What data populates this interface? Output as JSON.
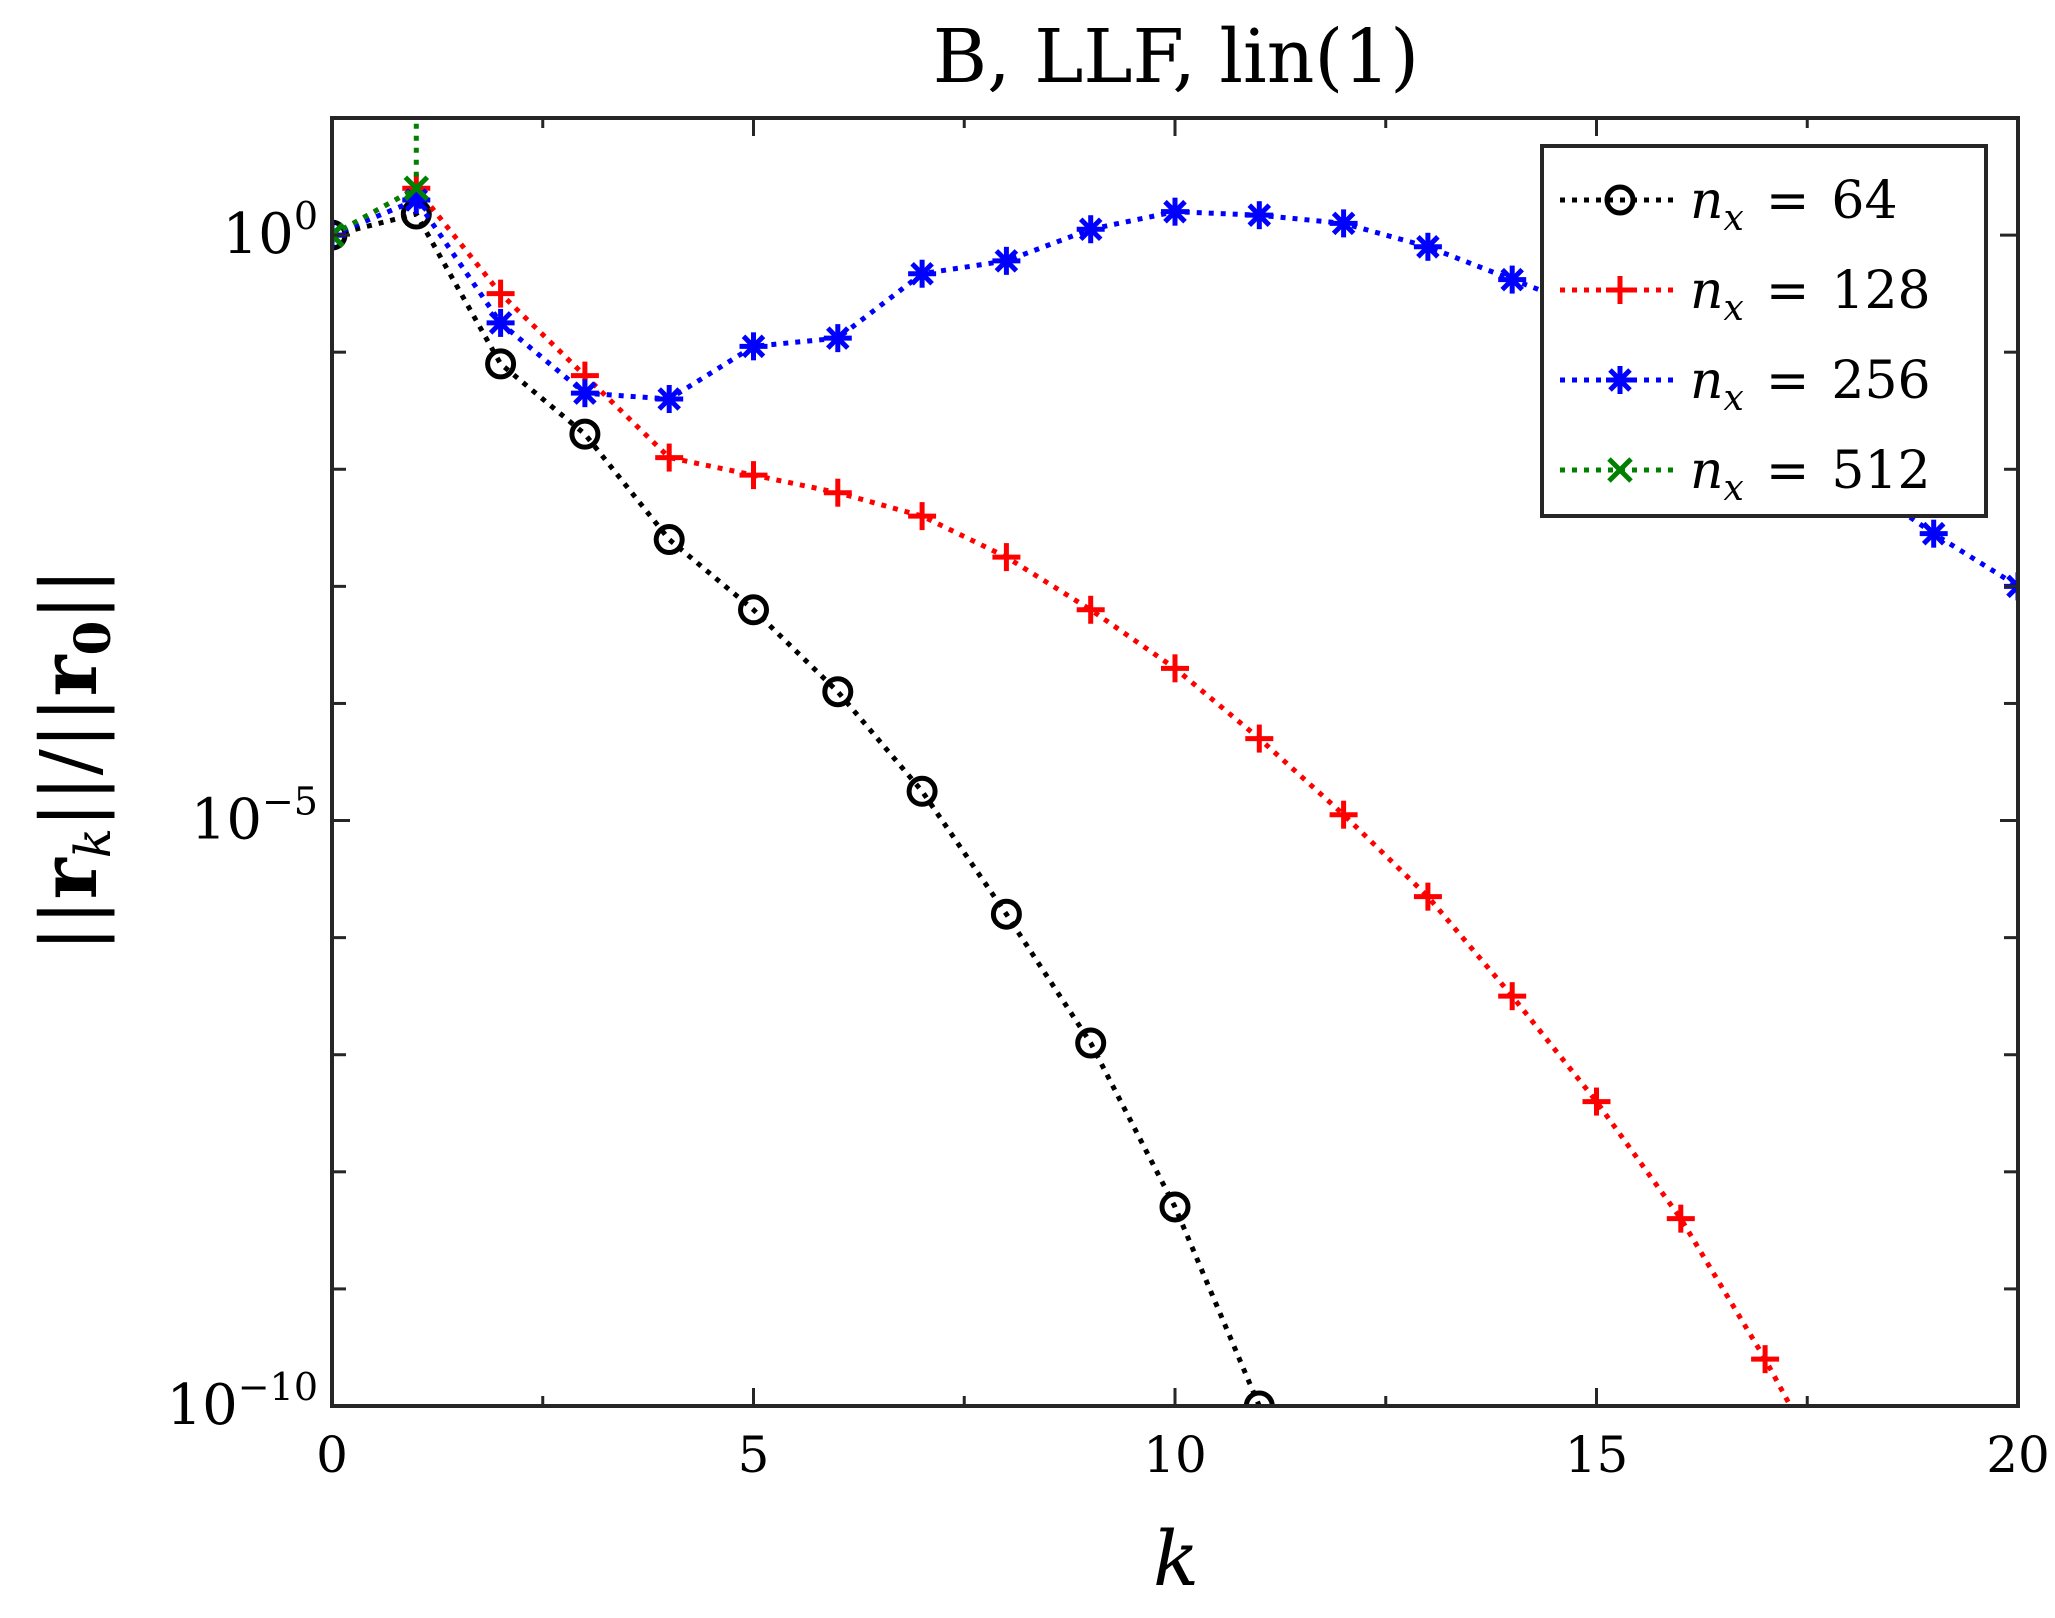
{
  "chart_data": {
    "type": "line",
    "title": "B, LLF, lin(1)",
    "xlabel": "k",
    "ylabel_parts": {
      "bar": "||",
      "r": "r",
      "k": "k",
      "slash": "/",
      "zero": "0"
    },
    "xlim": [
      0,
      20
    ],
    "ylim_log10": [
      -10,
      1
    ],
    "y_scale": "log",
    "grid": false,
    "legend_position": "top-right",
    "xticks": [
      0,
      5,
      10,
      15,
      20
    ],
    "xtick_labels": [
      "0",
      "5",
      "10",
      "15",
      "20"
    ],
    "yticks": [
      {
        "log10": 0,
        "base": "10",
        "exp": "0"
      },
      {
        "log10": -5,
        "base": "10",
        "exp": "−5"
      },
      {
        "log10": -10,
        "base": "10",
        "exp": "−10"
      }
    ],
    "series": [
      {
        "name_var": "n",
        "name_sub": "x",
        "name_eq": "=",
        "name_val": "64",
        "color": "#000000",
        "marker": "circle",
        "x": [
          0,
          1,
          2,
          3,
          4,
          5,
          6,
          7,
          8,
          9,
          10,
          11
        ],
        "log10_y": [
          0,
          0.18,
          -1.1,
          -1.7,
          -2.6,
          -3.2,
          -3.9,
          -4.75,
          -5.8,
          -6.9,
          -8.3,
          -10.0
        ]
      },
      {
        "name_var": "n",
        "name_sub": "x",
        "name_eq": "=",
        "name_val": "128",
        "color": "#ff0000",
        "marker": "plus",
        "x": [
          0,
          1,
          2,
          3,
          4,
          5,
          6,
          7,
          8,
          9,
          10,
          11,
          12,
          13,
          14,
          15,
          16,
          17,
          17.3
        ],
        "log10_y": [
          0,
          0.4,
          -0.5,
          -1.2,
          -1.9,
          -2.05,
          -2.2,
          -2.4,
          -2.75,
          -3.2,
          -3.7,
          -4.3,
          -4.95,
          -5.65,
          -6.5,
          -7.4,
          -8.4,
          -9.6,
          -10.0
        ]
      },
      {
        "name_var": "n",
        "name_sub": "x",
        "name_eq": "=",
        "name_val": "256",
        "color": "#0000ff",
        "marker": "star",
        "x": [
          0,
          1,
          2,
          3,
          4,
          5,
          6,
          7,
          8,
          9,
          10,
          11,
          12,
          13,
          14,
          15,
          16,
          17,
          18,
          19,
          20
        ],
        "log10_y": [
          0,
          0.3,
          -0.75,
          -1.35,
          -1.4,
          -0.95,
          -0.88,
          -0.33,
          -0.22,
          0.05,
          0.2,
          0.17,
          0.1,
          -0.1,
          -0.38,
          -0.65,
          -1.0,
          -1.45,
          -2.05,
          -2.55,
          -3.0
        ]
      },
      {
        "name_var": "n",
        "name_sub": "x",
        "name_eq": "=",
        "name_val": "512",
        "color": "#008000",
        "marker": "cross",
        "x": [
          0,
          1,
          1
        ],
        "log10_y": [
          0,
          0.4,
          1.0
        ]
      }
    ]
  }
}
